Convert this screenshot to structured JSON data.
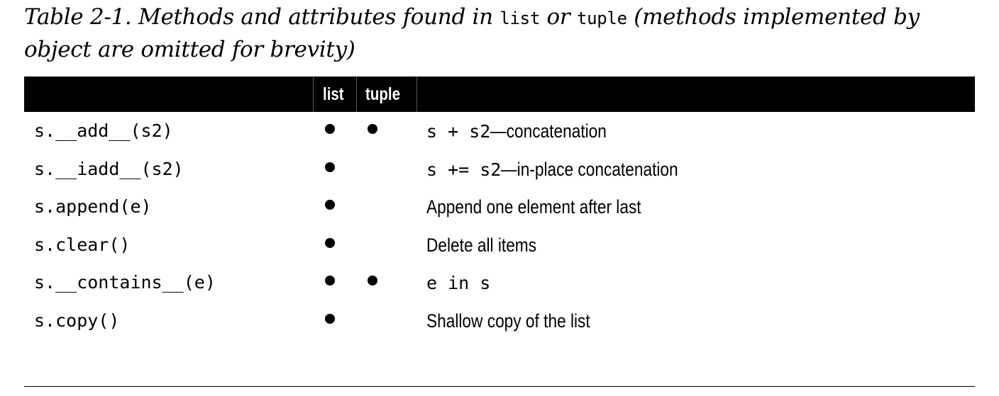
{
  "caption": {
    "part1": "Table 2-1. Methods and attributes found in ",
    "code1": "list",
    "part2": " or ",
    "code2": "tuple",
    "part3": " (methods implemented by object are omitted for brevity)"
  },
  "table": {
    "headers": {
      "method": "",
      "list": "list",
      "tuple": "tuple",
      "description": ""
    },
    "rows": [
      {
        "method": "s.__add__(s2)",
        "list": true,
        "tuple": true,
        "desc_code": "s + s2",
        "desc_text": "—concatenation"
      },
      {
        "method": "s.__iadd__(s2)",
        "list": true,
        "tuple": false,
        "desc_code": "s += s2",
        "desc_text": "—in-place concatenation"
      },
      {
        "method": "s.append(e)",
        "list": true,
        "tuple": false,
        "desc_code": "",
        "desc_text": "Append one element after last"
      },
      {
        "method": "s.clear()",
        "list": true,
        "tuple": false,
        "desc_code": "",
        "desc_text": "Delete all items"
      },
      {
        "method": "s.__contains__(e)",
        "list": true,
        "tuple": true,
        "desc_code": "e in s",
        "desc_text": ""
      },
      {
        "method": "s.copy()",
        "list": true,
        "tuple": false,
        "desc_code": "",
        "desc_text": "Shallow copy of the list"
      }
    ]
  }
}
